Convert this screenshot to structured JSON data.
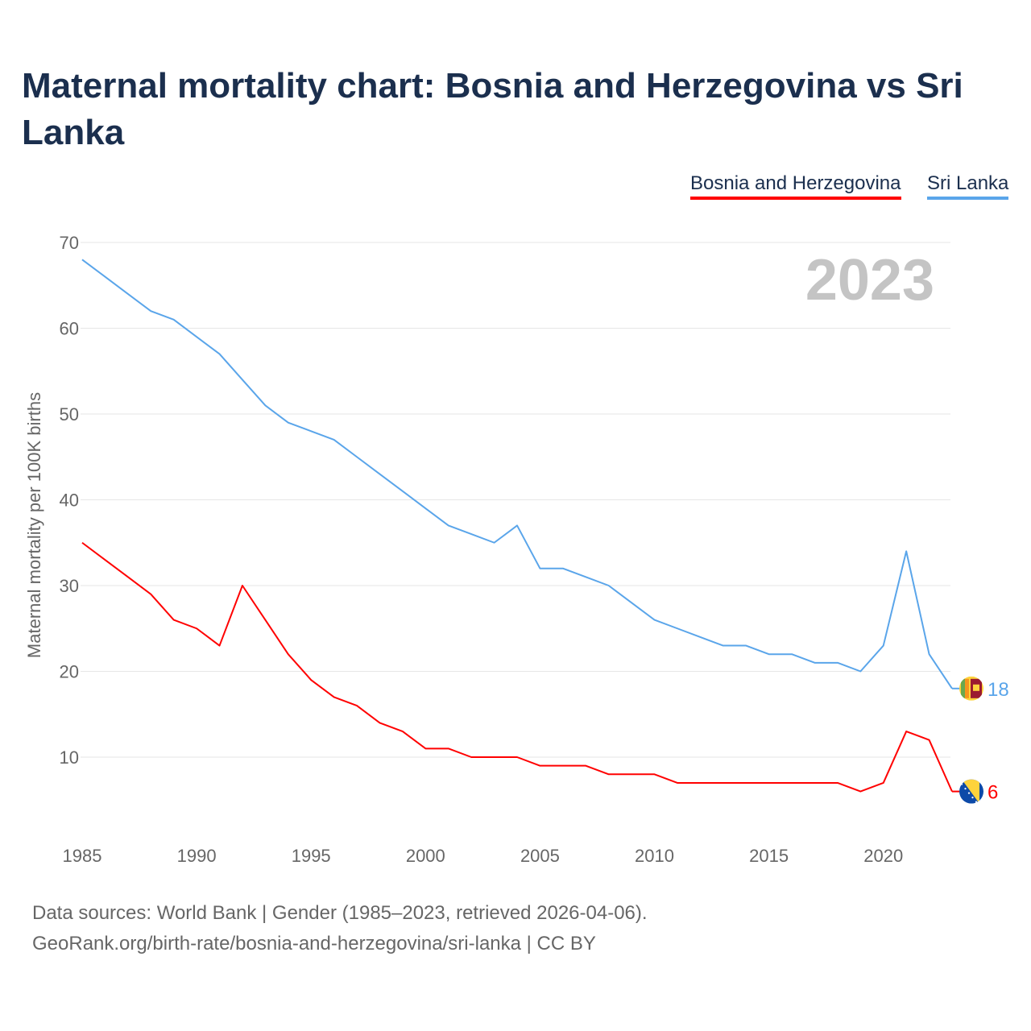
{
  "title": "Maternal mortality chart: Bosnia and Herzegovina vs Sri Lanka",
  "year_label": "2023",
  "footer": {
    "line1": "Data sources: World Bank | Gender (1985–2023, retrieved 2026-04-06).",
    "line2": "GeoRank.org/birth-rate/bosnia-and-herzegovina/sri-lanka | CC BY"
  },
  "chart_data": {
    "type": "line",
    "title": "Maternal mortality chart: Bosnia and Herzegovina vs Sri Lanka",
    "xlabel": "",
    "ylabel": "Maternal mortality per 100K births",
    "xlim": [
      1985,
      2023
    ],
    "ylim": [
      0,
      70
    ],
    "yticks": [
      10,
      20,
      30,
      40,
      50,
      60,
      70
    ],
    "xticks": [
      1985,
      1990,
      1995,
      2000,
      2005,
      2010,
      2015,
      2020
    ],
    "grid": true,
    "legend_position": "top-right",
    "x": [
      1985,
      1986,
      1987,
      1988,
      1989,
      1990,
      1991,
      1992,
      1993,
      1994,
      1995,
      1996,
      1997,
      1998,
      1999,
      2000,
      2001,
      2002,
      2003,
      2004,
      2005,
      2006,
      2007,
      2008,
      2009,
      2010,
      2011,
      2012,
      2013,
      2014,
      2015,
      2016,
      2017,
      2018,
      2019,
      2020,
      2021,
      2022,
      2023
    ],
    "series": [
      {
        "name": "Bosnia and Herzegovina",
        "color": "#ff0000",
        "end_label": "6",
        "values": [
          35,
          33,
          31,
          29,
          26,
          25,
          23,
          30,
          26,
          22,
          19,
          17,
          16,
          14,
          13,
          11,
          11,
          10,
          10,
          10,
          9,
          9,
          9,
          8,
          8,
          8,
          7,
          7,
          7,
          7,
          7,
          7,
          7,
          7,
          6,
          7,
          13,
          12,
          6
        ]
      },
      {
        "name": "Sri Lanka",
        "color": "#5aa5ea",
        "end_label": "18",
        "values": [
          68,
          66,
          64,
          62,
          61,
          59,
          57,
          54,
          51,
          49,
          48,
          47,
          45,
          43,
          41,
          39,
          37,
          36,
          35,
          37,
          32,
          32,
          31,
          30,
          28,
          26,
          25,
          24,
          23,
          23,
          22,
          22,
          21,
          21,
          20,
          23,
          34,
          22,
          18
        ]
      }
    ]
  }
}
